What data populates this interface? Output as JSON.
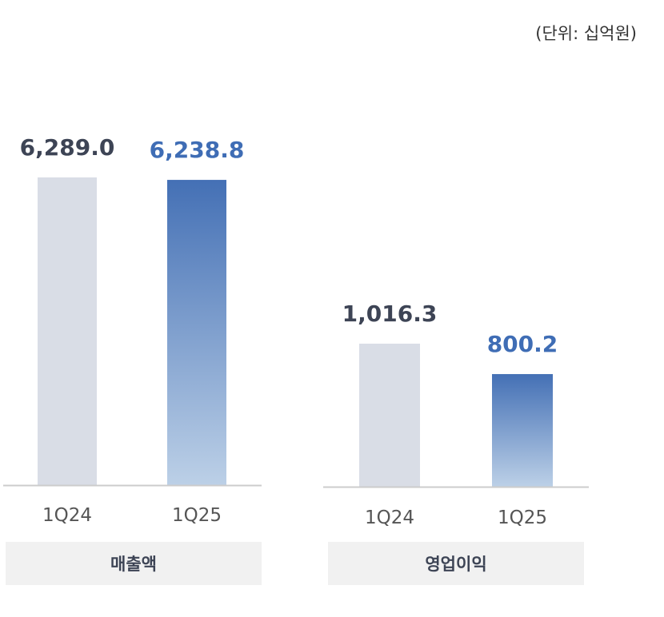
{
  "unit_label": "(단위: 십억원)",
  "colors": {
    "prior_bar": "#d9dde6",
    "current_bar_top": "#4470b5",
    "current_bar_bottom": "#bcd0e7",
    "prior_label": "#3d4455",
    "current_label": "#3f6db5",
    "axis": "#cccccc",
    "tick_text": "#555555"
  },
  "chart_data": [
    {
      "type": "bar",
      "category_label": "매출액",
      "categories": [
        "1Q24",
        "1Q25"
      ],
      "values": [
        6289.0,
        6238.8
      ],
      "value_labels": [
        "6,289.0",
        "6,238.8"
      ],
      "ylim": [
        0,
        6289.0
      ]
    },
    {
      "type": "bar",
      "category_label": "영업이익",
      "categories": [
        "1Q24",
        "1Q25"
      ],
      "values": [
        1016.3,
        800.2
      ],
      "value_labels": [
        "1,016.3",
        "800.2"
      ],
      "ylim": [
        0,
        1016.3
      ]
    }
  ]
}
